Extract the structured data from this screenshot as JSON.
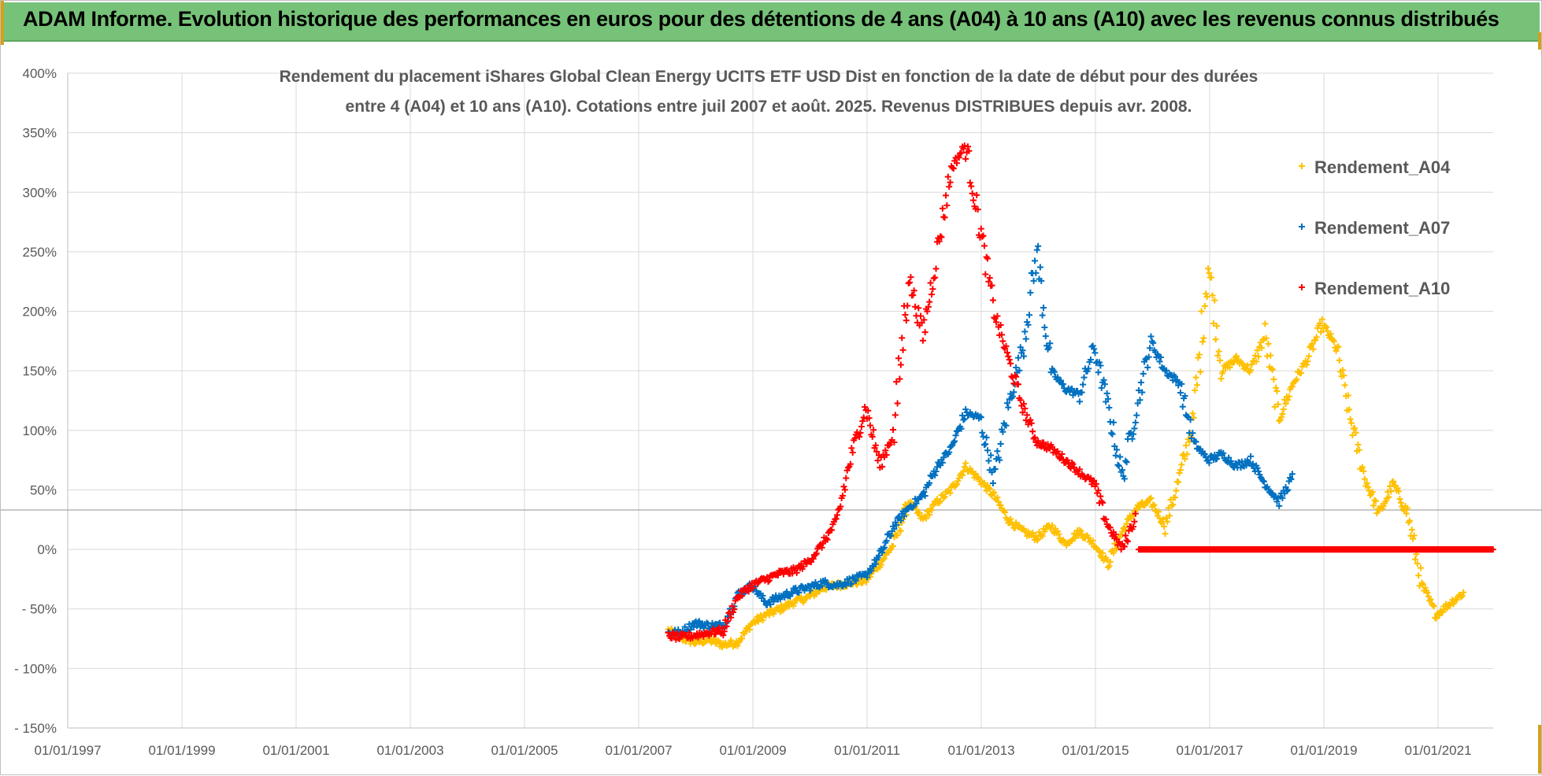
{
  "header": {
    "title": "ADAM Informe. Evolution historique des performances en euros pour des détentions de 4 ans (A04) à 10 ans (A10) avec les revenus connus distribués"
  },
  "colors": {
    "header_bg": "#76c278",
    "A04": "#ffc000",
    "A07": "#0070c0",
    "A10": "#ff0000",
    "grid": "#d9d9d9",
    "text": "#595959"
  },
  "chart_data": {
    "type": "scatter",
    "title_lines": [
      "Rendement du placement iShares Global Clean Energy UCITS ETF USD Dist en fonction de la date de début pour des durées",
      "entre 4 (A04) et 10 ans (A10).  Cotations entre juil 2007 et août. 2025.  Revenus DISTRIBUES depuis avr. 2008."
    ],
    "x_tick_labels": [
      "01/01/1997",
      "01/01/1999",
      "01/01/2001",
      "01/01/2003",
      "01/01/2005",
      "01/01/2007",
      "01/01/2009",
      "01/01/2011",
      "01/01/2013",
      "01/01/2015",
      "01/01/2017",
      "01/01/2019",
      "01/01/2021"
    ],
    "xlim": [
      "1997-01-01",
      "2022-01-01"
    ],
    "y_tick_labels": [
      "400%",
      "350%",
      "300%",
      "250%",
      "200%",
      "150%",
      "100%",
      "50%",
      "0%",
      "- 50%",
      "- 100%",
      "- 150%"
    ],
    "ylim": [
      -150,
      400
    ],
    "y_unit": "%",
    "grid": true,
    "legend_position": "top-right",
    "marker": "+",
    "series": [
      {
        "name": "Rendement_A04",
        "color": "#ffc000",
        "points": [
          [
            "2007-07-15",
            -68
          ],
          [
            "2007-10-01",
            -74
          ],
          [
            "2008-01-01",
            -78
          ],
          [
            "2008-04-01",
            -76
          ],
          [
            "2008-07-01",
            -80
          ],
          [
            "2008-10-01",
            -78
          ],
          [
            "2009-01-01",
            -62
          ],
          [
            "2009-04-01",
            -55
          ],
          [
            "2009-07-01",
            -50
          ],
          [
            "2009-10-01",
            -44
          ],
          [
            "2010-01-01",
            -40
          ],
          [
            "2010-04-01",
            -32
          ],
          [
            "2010-07-01",
            -30
          ],
          [
            "2010-10-01",
            -28
          ],
          [
            "2011-01-01",
            -26
          ],
          [
            "2011-04-01",
            -12
          ],
          [
            "2011-07-01",
            5
          ],
          [
            "2011-10-01",
            40
          ],
          [
            "2012-01-01",
            25
          ],
          [
            "2012-04-01",
            40
          ],
          [
            "2012-07-01",
            50
          ],
          [
            "2012-10-01",
            70
          ],
          [
            "2013-01-01",
            58
          ],
          [
            "2013-04-01",
            45
          ],
          [
            "2013-07-01",
            25
          ],
          [
            "2013-10-01",
            15
          ],
          [
            "2014-01-01",
            10
          ],
          [
            "2014-04-01",
            20
          ],
          [
            "2014-07-01",
            5
          ],
          [
            "2014-10-01",
            15
          ],
          [
            "2015-01-01",
            5
          ],
          [
            "2015-04-01",
            -12
          ],
          [
            "2015-07-01",
            15
          ],
          [
            "2015-10-01",
            35
          ],
          [
            "2016-01-01",
            40
          ],
          [
            "2016-04-01",
            20
          ],
          [
            "2016-07-01",
            60
          ],
          [
            "2016-10-01",
            110
          ],
          [
            "2017-01-01",
            240
          ],
          [
            "2017-04-01",
            150
          ],
          [
            "2017-07-01",
            160
          ],
          [
            "2017-10-01",
            150
          ],
          [
            "2018-01-01",
            180
          ],
          [
            "2018-04-01",
            110
          ],
          [
            "2018-07-01",
            140
          ],
          [
            "2018-10-01",
            160
          ],
          [
            "2019-01-01",
            190
          ],
          [
            "2019-04-01",
            170
          ],
          [
            "2019-07-01",
            110
          ],
          [
            "2019-10-01",
            60
          ],
          [
            "2020-01-01",
            30
          ],
          [
            "2020-04-01",
            55
          ],
          [
            "2020-07-01",
            30
          ],
          [
            "2020-10-01",
            -30
          ],
          [
            "2021-01-01",
            -55
          ],
          [
            "2021-04-01",
            -45
          ],
          [
            "2021-07-01",
            -36
          ]
        ]
      },
      {
        "name": "Rendement_A07",
        "color": "#0070c0",
        "points": [
          [
            "2007-07-15",
            -70
          ],
          [
            "2007-10-01",
            -70
          ],
          [
            "2008-01-01",
            -62
          ],
          [
            "2008-04-01",
            -64
          ],
          [
            "2008-07-01",
            -64
          ],
          [
            "2008-10-01",
            -38
          ],
          [
            "2009-01-01",
            -30
          ],
          [
            "2009-04-01",
            -45
          ],
          [
            "2009-07-01",
            -40
          ],
          [
            "2009-10-01",
            -35
          ],
          [
            "2010-01-01",
            -32
          ],
          [
            "2010-04-01",
            -28
          ],
          [
            "2010-07-01",
            -30
          ],
          [
            "2010-10-01",
            -26
          ],
          [
            "2011-01-01",
            -22
          ],
          [
            "2011-04-01",
            -5
          ],
          [
            "2011-07-01",
            20
          ],
          [
            "2011-10-01",
            35
          ],
          [
            "2012-01-01",
            45
          ],
          [
            "2012-04-01",
            70
          ],
          [
            "2012-07-01",
            85
          ],
          [
            "2012-10-01",
            115
          ],
          [
            "2013-01-01",
            110
          ],
          [
            "2013-04-01",
            60
          ],
          [
            "2013-07-01",
            120
          ],
          [
            "2013-10-01",
            170
          ],
          [
            "2014-01-01",
            250
          ],
          [
            "2014-04-01",
            150
          ],
          [
            "2014-07-01",
            135
          ],
          [
            "2014-10-01",
            130
          ],
          [
            "2015-01-01",
            170
          ],
          [
            "2015-04-01",
            120
          ],
          [
            "2015-07-01",
            60
          ],
          [
            "2015-10-01",
            120
          ],
          [
            "2016-01-01",
            175
          ],
          [
            "2016-04-01",
            150
          ],
          [
            "2016-07-01",
            140
          ],
          [
            "2016-10-01",
            90
          ],
          [
            "2017-01-01",
            75
          ],
          [
            "2017-04-01",
            80
          ],
          [
            "2017-07-01",
            70
          ],
          [
            "2017-10-01",
            75
          ],
          [
            "2018-01-01",
            55
          ],
          [
            "2018-04-01",
            40
          ],
          [
            "2018-07-01",
            62
          ]
        ]
      },
      {
        "name": "Rendement_A10",
        "color": "#ff0000",
        "points": [
          [
            "2007-07-15",
            -72
          ],
          [
            "2007-10-01",
            -74
          ],
          [
            "2008-01-01",
            -72
          ],
          [
            "2008-04-01",
            -70
          ],
          [
            "2008-07-01",
            -68
          ],
          [
            "2008-10-01",
            -40
          ],
          [
            "2009-01-01",
            -30
          ],
          [
            "2009-04-01",
            -25
          ],
          [
            "2009-07-01",
            -20
          ],
          [
            "2009-10-01",
            -18
          ],
          [
            "2010-01-01",
            -10
          ],
          [
            "2010-04-01",
            5
          ],
          [
            "2010-07-01",
            25
          ],
          [
            "2010-10-01",
            80
          ],
          [
            "2011-01-01",
            120
          ],
          [
            "2011-04-01",
            70
          ],
          [
            "2011-07-01",
            100
          ],
          [
            "2011-10-01",
            230
          ],
          [
            "2012-01-01",
            180
          ],
          [
            "2012-04-01",
            250
          ],
          [
            "2012-07-01",
            320
          ],
          [
            "2012-10-01",
            340
          ],
          [
            "2013-01-01",
            270
          ],
          [
            "2013-04-01",
            200
          ],
          [
            "2013-07-01",
            160
          ],
          [
            "2013-10-01",
            120
          ],
          [
            "2014-01-01",
            90
          ],
          [
            "2014-04-01",
            85
          ],
          [
            "2014-07-01",
            75
          ],
          [
            "2014-10-01",
            65
          ],
          [
            "2015-01-01",
            55
          ],
          [
            "2015-04-01",
            20
          ],
          [
            "2015-07-01",
            0
          ],
          [
            "2015-10-01",
            30
          ]
        ],
        "flat_segment": {
          "from": "2015-10-15",
          "to": "2021-12-31",
          "value": 0
        }
      }
    ]
  }
}
